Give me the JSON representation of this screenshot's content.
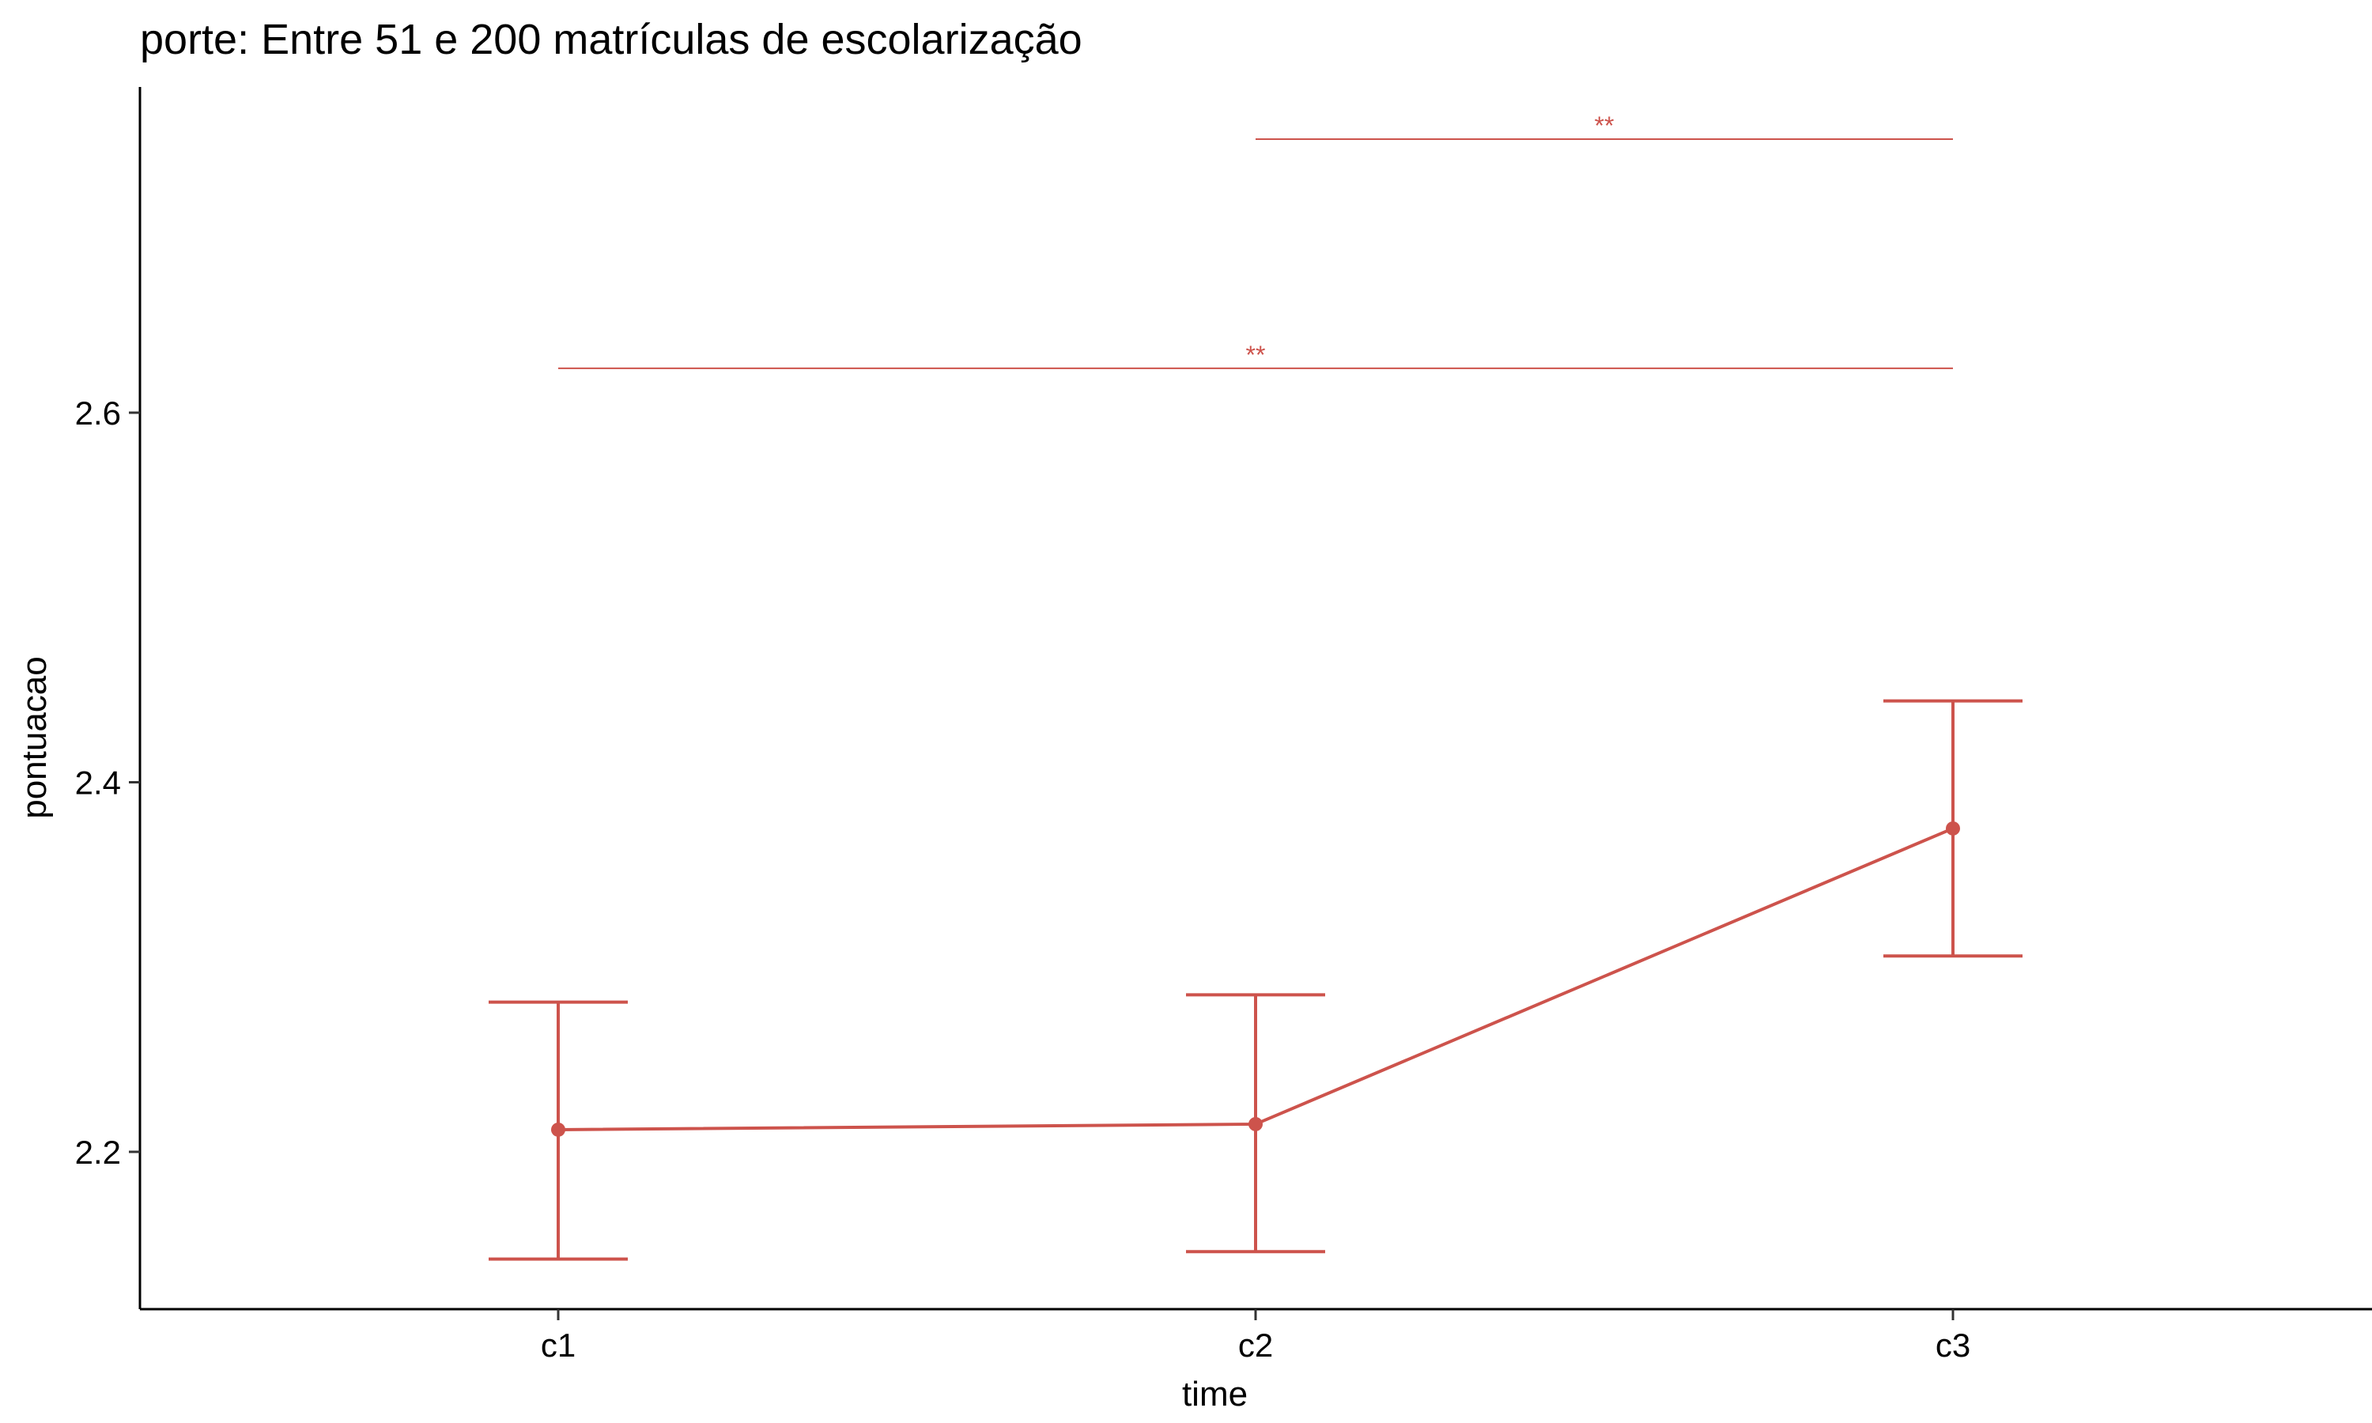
{
  "chart_data": {
    "type": "line",
    "title": "porte: Entre 51 e 200 matrículas de escolarização",
    "xlabel": "time",
    "ylabel": "pontuacao",
    "categories": [
      "c1",
      "c2",
      "c3"
    ],
    "series": [
      {
        "values": [
          2.212,
          2.215,
          2.375
        ],
        "error_low": [
          2.142,
          2.146,
          2.306
        ],
        "error_high": [
          2.281,
          2.285,
          2.444
        ],
        "color": "#cd534c"
      }
    ],
    "ylim": [
      2.115,
      2.78
    ],
    "yticks": [
      2.2,
      2.4,
      2.6
    ],
    "ytick_labels": [
      "2.2",
      "2.4",
      "2.6"
    ],
    "grid": false,
    "legend": "none",
    "significance": [
      {
        "from": "c1",
        "to": "c3",
        "y": 2.624,
        "label": "**"
      },
      {
        "from": "c2",
        "to": "c3",
        "y": 2.748,
        "label": "**"
      }
    ]
  }
}
